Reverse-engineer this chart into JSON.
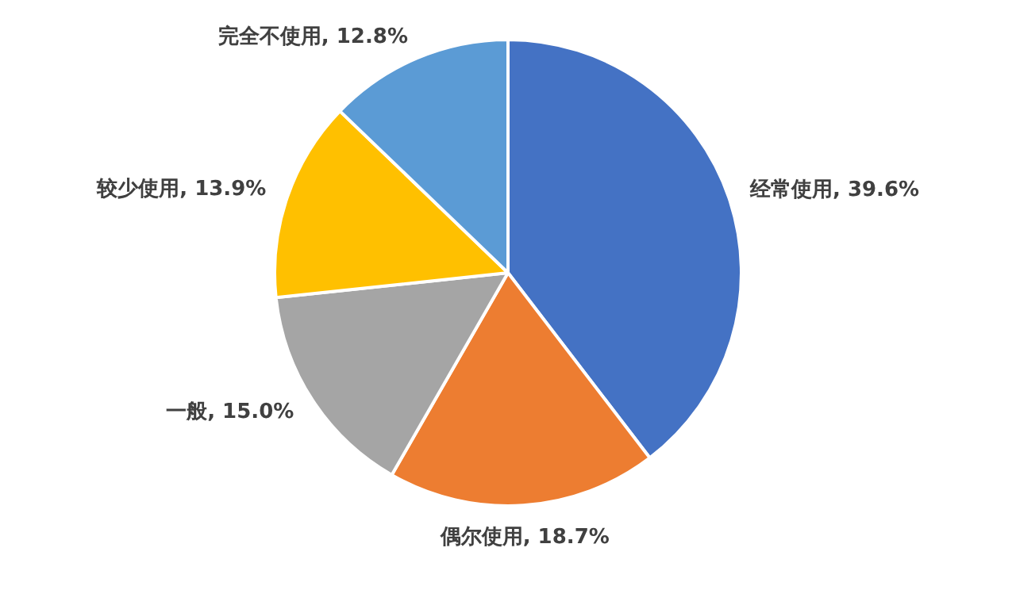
{
  "chart_data": {
    "type": "pie",
    "categories": [
      "经常使用",
      "偶尔使用",
      "一般",
      "较少使用",
      "完全不使用"
    ],
    "values": [
      39.6,
      18.7,
      15.0,
      13.9,
      12.8
    ],
    "value_labels": [
      "39.6%",
      "18.7%",
      "15.0%",
      "13.9%",
      "12.8%"
    ],
    "colors": [
      "#4472c4",
      "#ed7d31",
      "#a5a5a5",
      "#ffc000",
      "#5b9bd5"
    ],
    "legend": false
  }
}
